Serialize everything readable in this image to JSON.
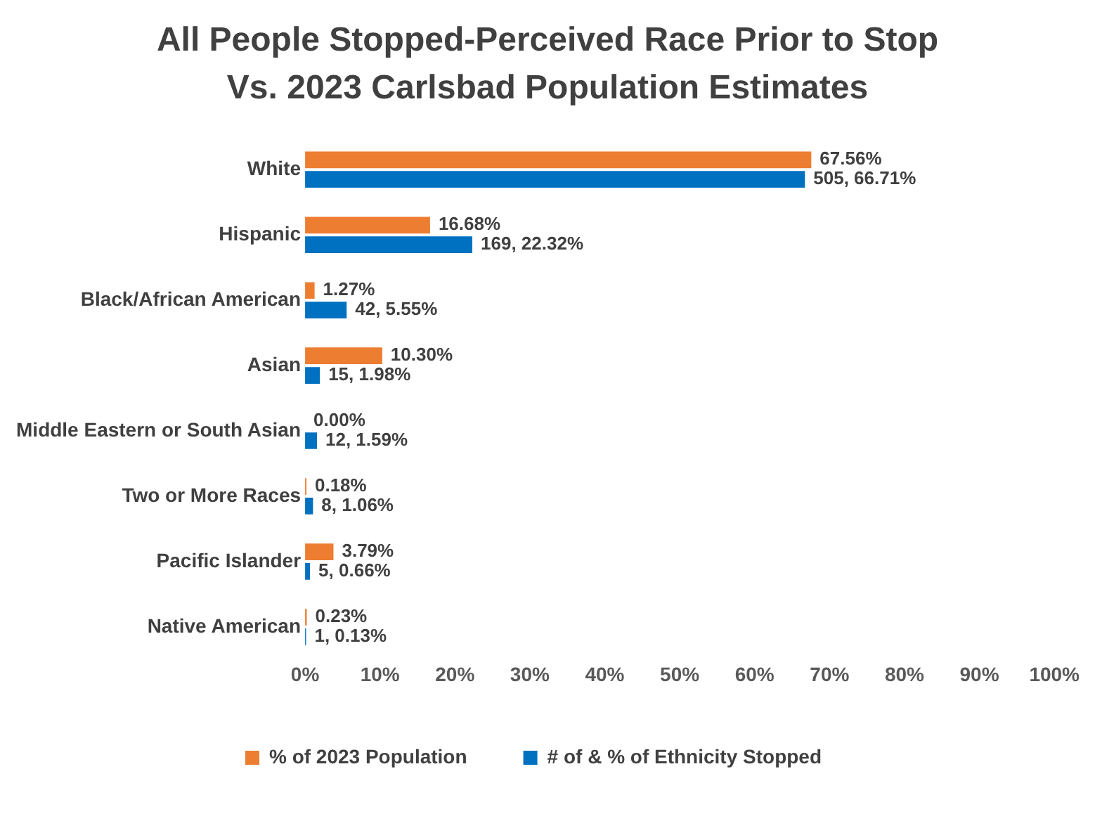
{
  "chart_data": {
    "type": "bar",
    "orientation": "horizontal",
    "title": "All People Stopped-Perceived Race Prior to Stop Vs. 2023 Carlsbad Population Estimates",
    "categories": [
      "White",
      "Hispanic",
      "Black/African American",
      "Asian",
      "Middle Eastern or South Asian",
      "Two or More Races",
      "Pacific Islander",
      "Native American"
    ],
    "series": [
      {
        "name": "% of 2023 Population",
        "color": "#ed7d31",
        "values": [
          67.56,
          16.68,
          1.27,
          10.3,
          0.0,
          0.18,
          3.79,
          0.23
        ],
        "value_labels": [
          "67.56%",
          "16.68%",
          "1.27%",
          "10.30%",
          "0.00%",
          "0.18%",
          "3.79%",
          "0.23%"
        ]
      },
      {
        "name": "# of & % of Ethnicity Stopped",
        "color": "#0070c0",
        "values": [
          66.71,
          22.32,
          5.55,
          1.98,
          1.59,
          1.06,
          0.66,
          0.13
        ],
        "value_labels": [
          "505, 66.71%",
          "169, 22.32%",
          "42, 5.55%",
          "15, 1.98%",
          "12, 1.59%",
          "8, 1.06%",
          "5, 0.66%",
          "1, 0.13%"
        ]
      }
    ],
    "xlim": [
      0,
      100
    ],
    "xticks": [
      {
        "value": 0,
        "label": "0%"
      },
      {
        "value": 10,
        "label": "10%"
      },
      {
        "value": 20,
        "label": "20%"
      },
      {
        "value": 30,
        "label": "30%"
      },
      {
        "value": 40,
        "label": "40%"
      },
      {
        "value": 50,
        "label": "50%"
      },
      {
        "value": 60,
        "label": "60%"
      },
      {
        "value": 70,
        "label": "70%"
      },
      {
        "value": 80,
        "label": "80%"
      },
      {
        "value": 90,
        "label": "90%"
      },
      {
        "value": 100,
        "label": "100%"
      }
    ],
    "grid": false,
    "legend": "bottom"
  }
}
